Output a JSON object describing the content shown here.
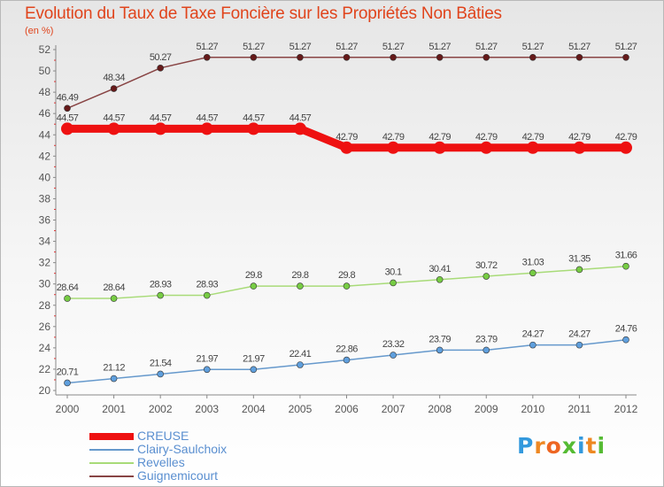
{
  "chart_data": {
    "type": "line",
    "title": "Evolution du Taux de Taxe Foncière sur les Propriétés Non Bâties",
    "subtitle": "(en %)",
    "xlabel": "",
    "ylabel": "(en %)",
    "ylim": [
      20,
      52
    ],
    "y_ticks": [
      20,
      22,
      24,
      26,
      28,
      30,
      32,
      34,
      36,
      38,
      40,
      42,
      44,
      46,
      48,
      50,
      52
    ],
    "x": [
      "2000",
      "2001",
      "2002",
      "2003",
      "2004",
      "2005",
      "2006",
      "2007",
      "2008",
      "2009",
      "2010",
      "2011",
      "2012"
    ],
    "series": [
      {
        "name": "CREUSE",
        "color": "#ee1111",
        "emphasis": true,
        "values": [
          44.57,
          44.57,
          44.57,
          44.57,
          44.57,
          44.57,
          42.79,
          42.79,
          42.79,
          42.79,
          42.79,
          42.79,
          42.79
        ],
        "labels": [
          "44.57",
          "44.57",
          "44.57",
          "44.57",
          "44.57",
          "44.57",
          "42.79",
          "42.79",
          "42.79",
          "42.79",
          "42.79",
          "42.79",
          "42.79"
        ]
      },
      {
        "name": "Clairy-Saulchoix",
        "color": "#6699cc",
        "marker": "#5f9fdd",
        "values": [
          20.71,
          21.12,
          21.54,
          21.97,
          21.97,
          22.41,
          22.86,
          23.32,
          23.79,
          23.79,
          24.27,
          24.27,
          24.76
        ],
        "labels": [
          "20.71",
          "21.12",
          "21.54",
          "21.97",
          "21.97",
          "22.41",
          "22.86",
          "23.32",
          "23.79",
          "23.79",
          "24.27",
          "24.27",
          "24.76"
        ]
      },
      {
        "name": "Revelles",
        "color": "#a8db78",
        "marker": "#77cc44",
        "values": [
          28.64,
          28.64,
          28.93,
          28.93,
          29.8,
          29.8,
          29.8,
          30.1,
          30.41,
          30.72,
          31.03,
          31.35,
          31.66
        ],
        "labels": [
          "28.64",
          "28.64",
          "28.93",
          "28.93",
          "29.8",
          "29.8",
          "29.8",
          "30.1",
          "30.41",
          "30.72",
          "31.03",
          "31.35",
          "31.66"
        ]
      },
      {
        "name": "Guignemicourt",
        "color": "#884444",
        "marker": "#661a1a",
        "values": [
          46.49,
          48.34,
          50.27,
          51.27,
          51.27,
          51.27,
          51.27,
          51.27,
          51.27,
          51.27,
          51.27,
          51.27,
          51.27
        ],
        "labels": [
          "46.49",
          "48.34",
          "50.27",
          "51.27",
          "51.27",
          "51.27",
          "51.27",
          "51.27",
          "51.27",
          "51.27",
          "51.27",
          "51.27",
          "51.27"
        ]
      }
    ],
    "legend": "bottom-left",
    "grid": false
  },
  "logo": {
    "letters": [
      "P",
      "r",
      "o",
      "x",
      "i",
      "t",
      "i"
    ],
    "colors": [
      "#3399dd",
      "#ee8822",
      "#ee6622",
      "#55bb33",
      "#3399dd",
      "#ee8822",
      "#55bb33"
    ]
  },
  "colors": {
    "title": "#e0441c",
    "axis": "#888888",
    "label": "#555555"
  }
}
